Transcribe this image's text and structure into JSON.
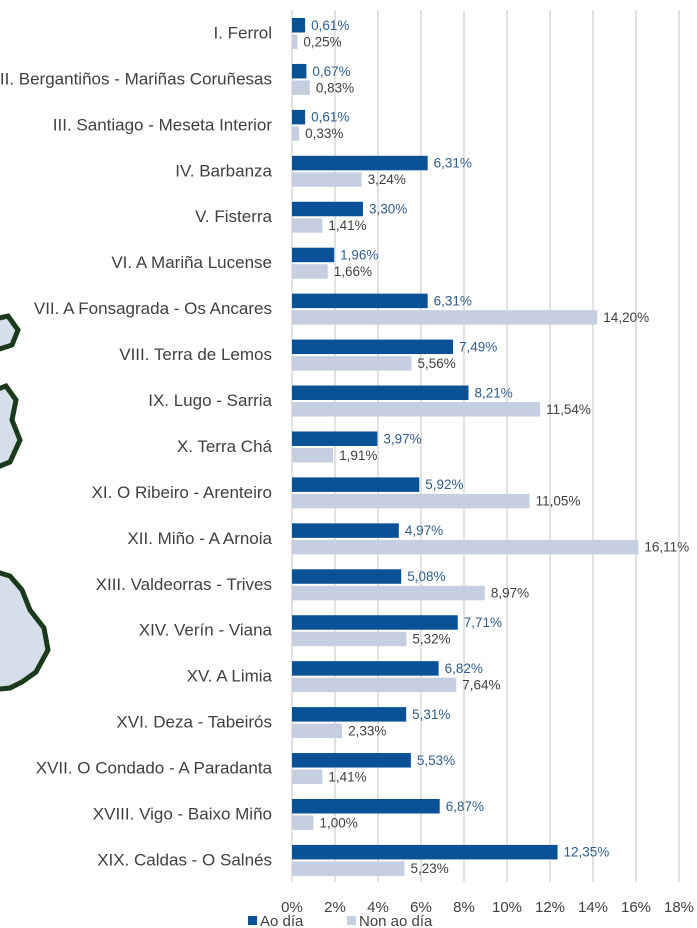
{
  "chart_data": {
    "type": "bar",
    "orientation": "horizontal",
    "categories": [
      "I. Ferrol",
      "II. Bergantiños - Mariñas Coruñesas",
      "III. Santiago - Meseta Interior",
      "IV. Barbanza",
      "V. Fisterra",
      "VI. A Mariña Lucense",
      "VII. A Fonsagrada - Os Ancares",
      "VIII. Terra de Lemos",
      "IX. Lugo - Sarria",
      "X. Terra Chá",
      "XI. O Ribeiro - Arenteiro",
      "XII. Miño - A Arnoia",
      "XIII. Valdeorras - Trives",
      "XIV. Verín - Viana",
      "XV. A Limia",
      "XVI. Deza - Tabeirós",
      "XVII. O Condado - A Paradanta",
      "XVIII. Vigo - Baixo Miño",
      "XIX. Caldas - O Salnés"
    ],
    "series": [
      {
        "name": "Ao día",
        "color": "#0b5196",
        "values": [
          0.61,
          0.67,
          0.61,
          6.31,
          3.3,
          1.96,
          6.31,
          7.49,
          8.21,
          3.97,
          5.92,
          4.97,
          5.08,
          7.71,
          6.82,
          5.31,
          5.53,
          6.87,
          12.35
        ],
        "value_labels": [
          "0,61%",
          "0,67%",
          "0,61%",
          "6,31%",
          "3,30%",
          "1,96%",
          "6,31%",
          "7,49%",
          "8,21%",
          "3,97%",
          "5,92%",
          "4,97%",
          "5,08%",
          "7,71%",
          "6,82%",
          "5,31%",
          "5,53%",
          "6,87%",
          "12,35%"
        ]
      },
      {
        "name": "Non ao día",
        "color": "#c5cfe0",
        "values": [
          0.25,
          0.83,
          0.33,
          3.24,
          1.41,
          1.66,
          14.2,
          5.56,
          11.54,
          1.91,
          11.05,
          16.11,
          8.97,
          5.32,
          7.64,
          2.33,
          1.41,
          1.0,
          5.23
        ],
        "value_labels": [
          "0,25%",
          "0,83%",
          "0,33%",
          "3,24%",
          "1,41%",
          "1,66%",
          "14,20%",
          "5,56%",
          "11,54%",
          "1,91%",
          "11,05%",
          "16,11%",
          "8,97%",
          "5,32%",
          "7,64%",
          "2,33%",
          "1,41%",
          "1,00%",
          "5,23%"
        ]
      }
    ],
    "xlim": [
      0,
      18
    ],
    "xticks": [
      {
        "value": 0,
        "label": "0%"
      },
      {
        "value": 2,
        "label": "2%"
      },
      {
        "value": 4,
        "label": "4%"
      },
      {
        "value": 6,
        "label": "6%"
      },
      {
        "value": 8,
        "label": "8%"
      },
      {
        "value": 10,
        "label": "10%"
      },
      {
        "value": 12,
        "label": "12%"
      },
      {
        "value": 14,
        "label": "14%"
      },
      {
        "value": 16,
        "label": "16%"
      },
      {
        "value": 18,
        "label": "18%"
      }
    ],
    "grid": true,
    "legend": "bottom"
  }
}
